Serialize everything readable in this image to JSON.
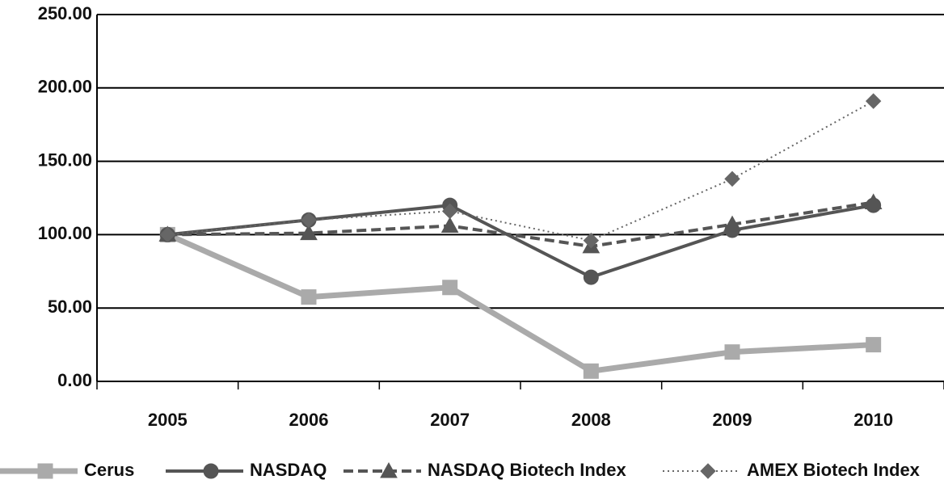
{
  "chart_data": {
    "type": "line",
    "categories": [
      "2005",
      "2006",
      "2007",
      "2008",
      "2009",
      "2010"
    ],
    "series": [
      {
        "name": "Cerus",
        "color": "#aaaaaa",
        "values": [
          100,
          57.5,
          64,
          7,
          20,
          25
        ]
      },
      {
        "name": "NASDAQ",
        "color": "#555555",
        "values": [
          100,
          110,
          120,
          71,
          103,
          120
        ]
      },
      {
        "name": "NASDAQ Biotech Index",
        "color": "#555555",
        "values": [
          100,
          101,
          106,
          92,
          107,
          122
        ]
      },
      {
        "name": "AMEX Biotech Index",
        "color": "#666666",
        "values": [
          100,
          110,
          116,
          96,
          138,
          191
        ]
      }
    ],
    "ylim": [
      0,
      250
    ],
    "yticks": [
      {
        "value": 0,
        "label": "0.00"
      },
      {
        "value": 50,
        "label": "50.00"
      },
      {
        "value": 100,
        "label": "100.00"
      },
      {
        "value": 150,
        "label": "150.00"
      },
      {
        "value": 200,
        "label": "200.00"
      },
      {
        "value": 250,
        "label": "250.00"
      }
    ],
    "grid": true,
    "legend": "bottom"
  }
}
